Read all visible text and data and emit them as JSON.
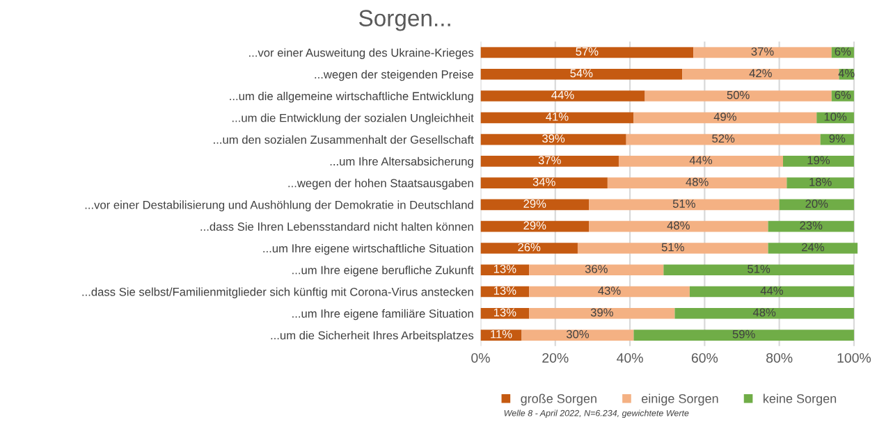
{
  "chart_data": {
    "type": "bar",
    "orientation": "horizontal",
    "stacked": true,
    "title": "Sorgen...",
    "categories": [
      "...vor einer Ausweitung des Ukraine-Krieges",
      "...wegen der steigenden Preise",
      "...um die allgemeine wirtschaftliche Entwicklung",
      "...um die Entwicklung der sozialen Ungleichheit",
      "...um den sozialen Zusammenhalt der Gesellschaft",
      "...um Ihre Altersabsicherung",
      "...wegen der hohen Staatsausgaben",
      "...vor einer Destabilisierung und Aushöhlung der Demokratie in Deutschland",
      "...dass Sie Ihren Lebensstandard nicht halten können",
      "...um Ihre eigene wirtschaftliche Situation",
      "...um Ihre eigene berufliche Zukunft",
      "...dass Sie selbst/Familienmitglieder sich künftig mit Corona-Virus anstecken",
      "...um Ihre eigene familiäre Situation",
      "...um die Sicherheit Ihres Arbeitsplatzes"
    ],
    "series": [
      {
        "name": "große Sorgen",
        "color": "#c55a11",
        "values": [
          57,
          54,
          44,
          41,
          39,
          37,
          34,
          29,
          29,
          26,
          13,
          13,
          13,
          11
        ],
        "value_labels": [
          "57%",
          "54%",
          "44%",
          "41%",
          "39%",
          "37%",
          "34%",
          "29%",
          "29%",
          "26%",
          "13%",
          "13%",
          "13%",
          "11%"
        ]
      },
      {
        "name": "einige Sorgen",
        "color": "#f4b183",
        "values": [
          37,
          42,
          50,
          49,
          52,
          44,
          48,
          51,
          48,
          51,
          36,
          43,
          39,
          30
        ],
        "value_labels": [
          "37%",
          "42%",
          "50%",
          "49%",
          "52%",
          "44%",
          "48%",
          "51%",
          "48%",
          "51%",
          "36%",
          "43%",
          "39%",
          "30%"
        ]
      },
      {
        "name": "keine Sorgen",
        "color": "#70ad47",
        "values": [
          6,
          4,
          6,
          10,
          9,
          19,
          18,
          20,
          23,
          24,
          51,
          44,
          48,
          59
        ],
        "value_labels": [
          "6%",
          "4%",
          "6%",
          "10%",
          "9%",
          "19%",
          "18%",
          "20%",
          "23%",
          "24%",
          "51%",
          "44%",
          "48%",
          "59%"
        ]
      }
    ],
    "xlim": [
      0,
      101
    ],
    "xticks": [
      {
        "value": 0,
        "label": "0%"
      },
      {
        "value": 20,
        "label": "20%"
      },
      {
        "value": 40,
        "label": "40%"
      },
      {
        "value": 60,
        "label": "60%"
      },
      {
        "value": 80,
        "label": "80%"
      },
      {
        "value": 100,
        "label": "100%"
      }
    ],
    "grid": "x",
    "legend": "bottom",
    "annotations": [
      "Welle 8 - April 2022, N=6.234, gewichtete Werte"
    ]
  }
}
